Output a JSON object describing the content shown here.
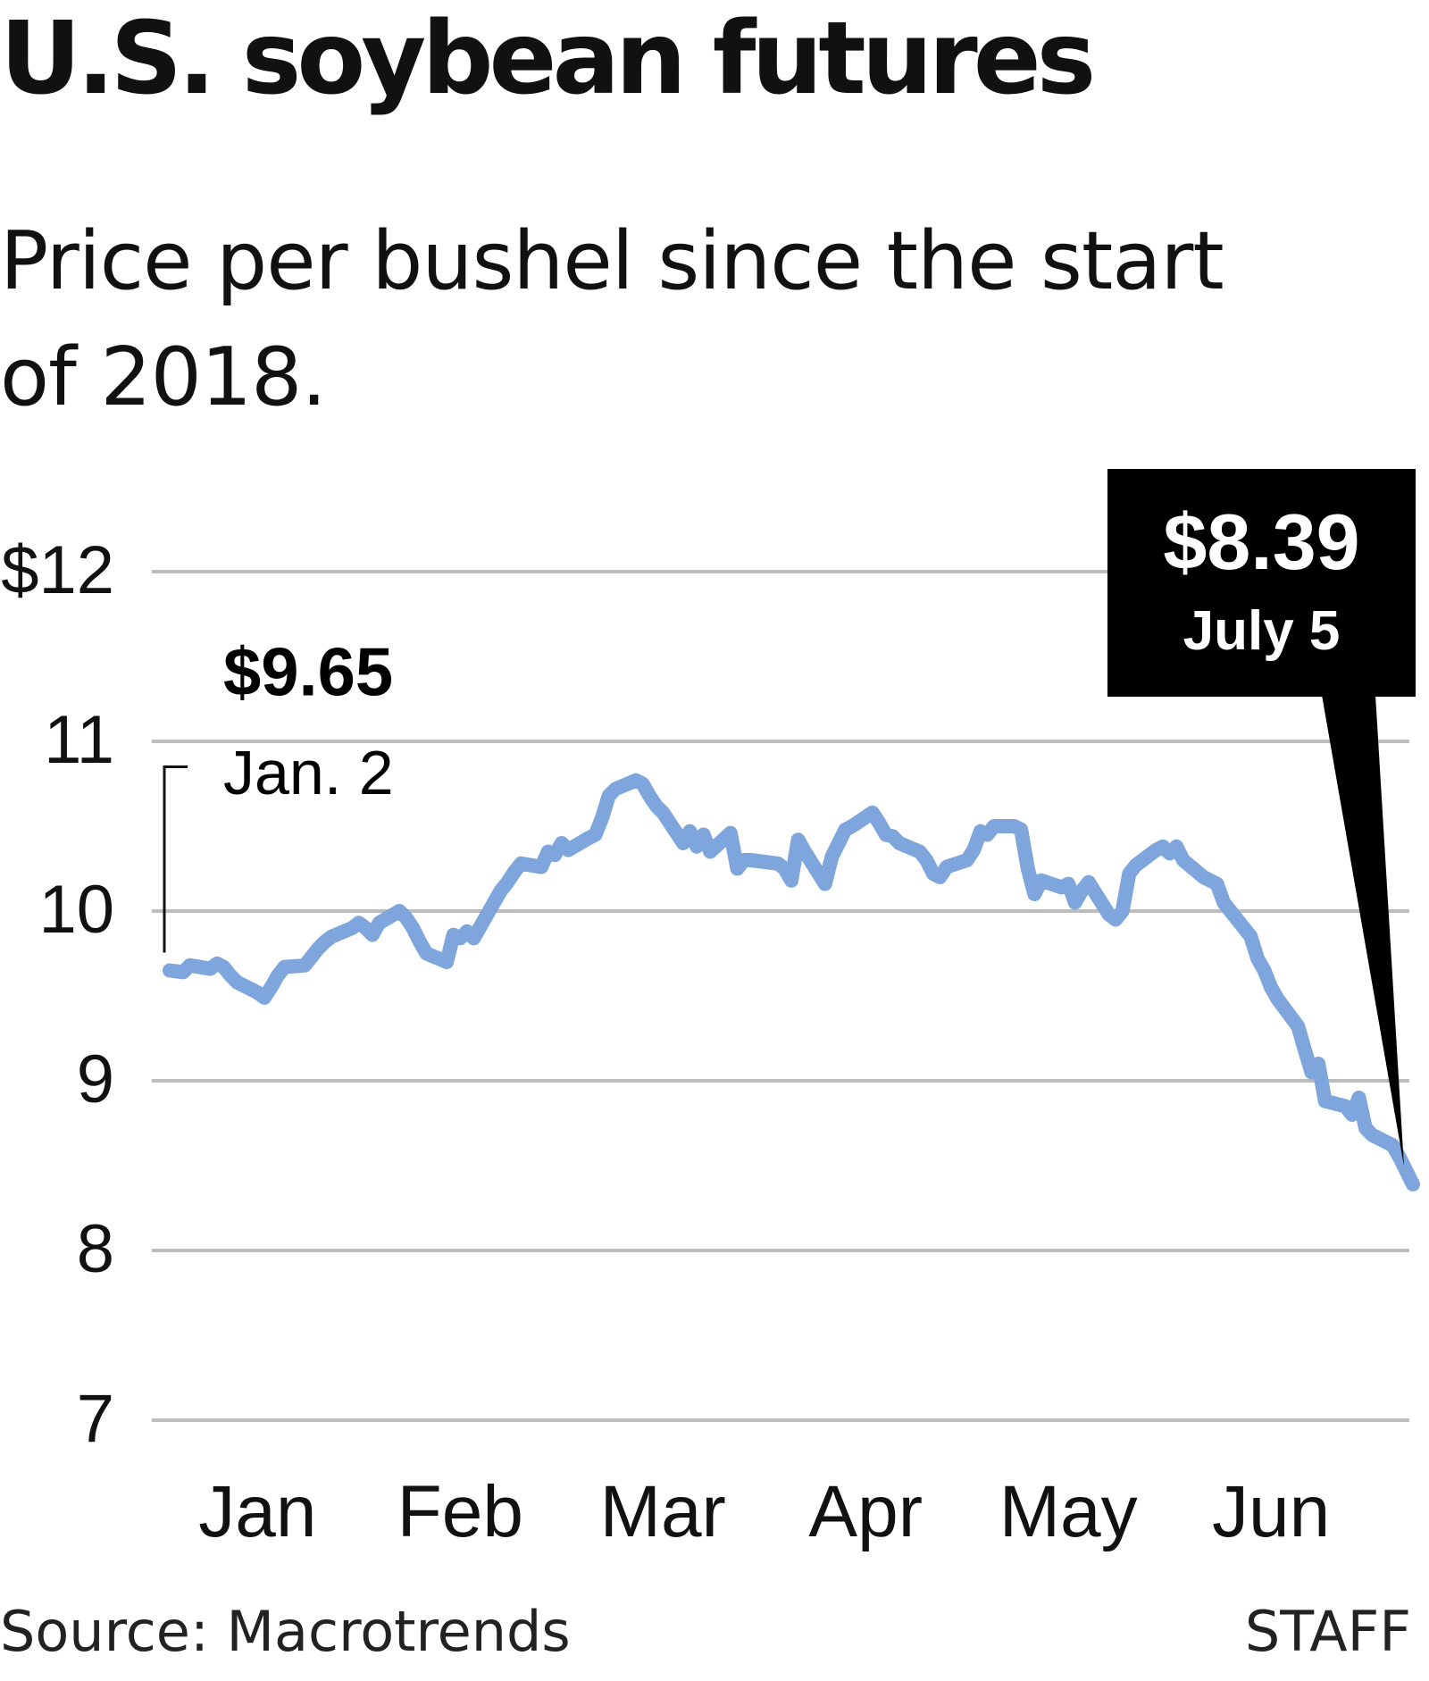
{
  "header": {
    "title": "U.S. soybean futures",
    "subtitle": "Price per bushel since the start of 2018."
  },
  "footer": {
    "source": "Source: Macrotrends",
    "credit": "STAFF"
  },
  "colors": {
    "line": "#7ea6dc",
    "grid": "#bdbdbd",
    "text": "#111111",
    "callout_bg": "#000000",
    "callout_text": "#ffffff"
  },
  "chart_data": {
    "type": "line",
    "title": "U.S. soybean futures",
    "subtitle": "Price per bushel since the start of 2018.",
    "ylim": [
      7,
      12
    ],
    "y_ticks": [
      7,
      8,
      9,
      10,
      11,
      12
    ],
    "y_tick_labels": [
      "7",
      "8",
      "9",
      "10",
      "11",
      "$12"
    ],
    "x_range": [
      "2018-01-02",
      "2018-07-05"
    ],
    "x_ticks": [
      {
        "date": "2018-01-15",
        "label": "Jan"
      },
      {
        "date": "2018-02-14",
        "label": "Feb"
      },
      {
        "date": "2018-03-16",
        "label": "Mar"
      },
      {
        "date": "2018-04-15",
        "label": "Apr"
      },
      {
        "date": "2018-05-15",
        "label": "May"
      },
      {
        "date": "2018-06-14",
        "label": "Jun"
      }
    ],
    "grid": true,
    "series": [
      {
        "points": [
          [
            "2018-01-02",
            9.65
          ],
          [
            "2018-01-04",
            9.64
          ],
          [
            "2018-01-05",
            9.68
          ],
          [
            "2018-01-08",
            9.66
          ],
          [
            "2018-01-09",
            9.69
          ],
          [
            "2018-01-10",
            9.67
          ],
          [
            "2018-01-11",
            9.62
          ],
          [
            "2018-01-12",
            9.58
          ],
          [
            "2018-01-15",
            9.52
          ],
          [
            "2018-01-16",
            9.49
          ],
          [
            "2018-01-17",
            9.55
          ],
          [
            "2018-01-18",
            9.62
          ],
          [
            "2018-01-19",
            9.67
          ],
          [
            "2018-01-22",
            9.68
          ],
          [
            "2018-01-23",
            9.73
          ],
          [
            "2018-01-24",
            9.78
          ],
          [
            "2018-01-25",
            9.82
          ],
          [
            "2018-01-26",
            9.85
          ],
          [
            "2018-01-29",
            9.9
          ],
          [
            "2018-01-30",
            9.93
          ],
          [
            "2018-01-31",
            9.9
          ],
          [
            "2018-02-01",
            9.86
          ],
          [
            "2018-02-02",
            9.93
          ],
          [
            "2018-02-05",
            10.0
          ],
          [
            "2018-02-06",
            9.96
          ],
          [
            "2018-02-07",
            9.9
          ],
          [
            "2018-02-08",
            9.82
          ],
          [
            "2018-02-09",
            9.75
          ],
          [
            "2018-02-12",
            9.7
          ],
          [
            "2018-02-13",
            9.86
          ],
          [
            "2018-02-14",
            9.84
          ],
          [
            "2018-02-15",
            9.88
          ],
          [
            "2018-02-16",
            9.84
          ],
          [
            "2018-02-19",
            10.05
          ],
          [
            "2018-02-20",
            10.12
          ],
          [
            "2018-02-21",
            10.17
          ],
          [
            "2018-02-22",
            10.23
          ],
          [
            "2018-02-23",
            10.28
          ],
          [
            "2018-02-26",
            10.26
          ],
          [
            "2018-02-27",
            10.35
          ],
          [
            "2018-02-28",
            10.33
          ],
          [
            "2018-03-01",
            10.4
          ],
          [
            "2018-03-02",
            10.36
          ],
          [
            "2018-03-05",
            10.43
          ],
          [
            "2018-03-06",
            10.45
          ],
          [
            "2018-03-07",
            10.55
          ],
          [
            "2018-03-08",
            10.68
          ],
          [
            "2018-03-09",
            10.72
          ],
          [
            "2018-03-12",
            10.77
          ],
          [
            "2018-03-13",
            10.75
          ],
          [
            "2018-03-14",
            10.68
          ],
          [
            "2018-03-15",
            10.62
          ],
          [
            "2018-03-16",
            10.58
          ],
          [
            "2018-03-19",
            10.4
          ],
          [
            "2018-03-20",
            10.47
          ],
          [
            "2018-03-21",
            10.38
          ],
          [
            "2018-03-22",
            10.45
          ],
          [
            "2018-03-23",
            10.35
          ],
          [
            "2018-03-26",
            10.46
          ],
          [
            "2018-03-27",
            10.25
          ],
          [
            "2018-03-28",
            10.3
          ],
          [
            "2018-03-29",
            10.3
          ],
          [
            "2018-04-02",
            10.28
          ],
          [
            "2018-04-03",
            10.25
          ],
          [
            "2018-04-04",
            10.18
          ],
          [
            "2018-04-05",
            10.42
          ],
          [
            "2018-04-06",
            10.35
          ],
          [
            "2018-04-09",
            10.16
          ],
          [
            "2018-04-10",
            10.32
          ],
          [
            "2018-04-11",
            10.4
          ],
          [
            "2018-04-12",
            10.48
          ],
          [
            "2018-04-13",
            10.5
          ],
          [
            "2018-04-16",
            10.58
          ],
          [
            "2018-04-17",
            10.52
          ],
          [
            "2018-04-18",
            10.45
          ],
          [
            "2018-04-19",
            10.44
          ],
          [
            "2018-04-20",
            10.4
          ],
          [
            "2018-04-23",
            10.35
          ],
          [
            "2018-04-24",
            10.3
          ],
          [
            "2018-04-25",
            10.22
          ],
          [
            "2018-04-26",
            10.2
          ],
          [
            "2018-04-27",
            10.26
          ],
          [
            "2018-04-30",
            10.3
          ],
          [
            "2018-05-01",
            10.36
          ],
          [
            "2018-05-02",
            10.47
          ],
          [
            "2018-05-03",
            10.45
          ],
          [
            "2018-05-04",
            10.5
          ],
          [
            "2018-05-07",
            10.5
          ],
          [
            "2018-05-08",
            10.48
          ],
          [
            "2018-05-09",
            10.25
          ],
          [
            "2018-05-10",
            10.1
          ],
          [
            "2018-05-11",
            10.18
          ],
          [
            "2018-05-14",
            10.14
          ],
          [
            "2018-05-15",
            10.16
          ],
          [
            "2018-05-16",
            10.05
          ],
          [
            "2018-05-17",
            10.12
          ],
          [
            "2018-05-18",
            10.17
          ],
          [
            "2018-05-21",
            9.98
          ],
          [
            "2018-05-22",
            9.95
          ],
          [
            "2018-05-23",
            10.0
          ],
          [
            "2018-05-24",
            10.22
          ],
          [
            "2018-05-25",
            10.27
          ],
          [
            "2018-05-28",
            10.36
          ],
          [
            "2018-05-29",
            10.38
          ],
          [
            "2018-05-30",
            10.34
          ],
          [
            "2018-05-31",
            10.38
          ],
          [
            "2018-06-01",
            10.3
          ],
          [
            "2018-06-04",
            10.2
          ],
          [
            "2018-06-05",
            10.18
          ],
          [
            "2018-06-06",
            10.16
          ],
          [
            "2018-06-07",
            10.05
          ],
          [
            "2018-06-08",
            10.0
          ],
          [
            "2018-06-11",
            9.85
          ],
          [
            "2018-06-12",
            9.72
          ],
          [
            "2018-06-13",
            9.65
          ],
          [
            "2018-06-14",
            9.55
          ],
          [
            "2018-06-15",
            9.48
          ],
          [
            "2018-06-18",
            9.32
          ],
          [
            "2018-06-19",
            9.18
          ],
          [
            "2018-06-20",
            9.05
          ],
          [
            "2018-06-21",
            9.1
          ],
          [
            "2018-06-22",
            8.88
          ],
          [
            "2018-06-25",
            8.85
          ],
          [
            "2018-06-26",
            8.8
          ],
          [
            "2018-06-27",
            8.9
          ],
          [
            "2018-06-28",
            8.72
          ],
          [
            "2018-06-29",
            8.68
          ],
          [
            "2018-07-02",
            8.62
          ],
          [
            "2018-07-03",
            8.55
          ],
          [
            "2018-07-05",
            8.39
          ]
        ]
      }
    ],
    "annotations": [
      {
        "value": "$9.65",
        "date_label": "Jan. 2",
        "date": "2018-01-02",
        "y": 9.65
      },
      {
        "value": "$8.39",
        "date_label": "July 5",
        "date": "2018-07-05",
        "y": 8.39
      }
    ]
  }
}
